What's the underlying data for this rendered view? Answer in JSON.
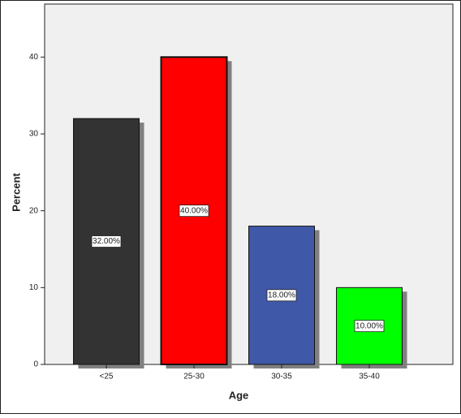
{
  "chart_data": {
    "type": "bar",
    "x_label": "Age",
    "y_label": "Percent",
    "categories": [
      "<25",
      "25-30",
      "30-35",
      "35-40"
    ],
    "values": [
      32,
      40,
      18,
      10
    ],
    "value_labels": [
      "32.00%",
      "40.00%",
      "18.00%",
      "10.00%"
    ],
    "colors": [
      "#333333",
      "#ff0000",
      "#3f58a8",
      "#00ff00"
    ],
    "ylim": [
      0,
      46.9
    ],
    "yticks": [
      0,
      10,
      20,
      30,
      40
    ],
    "grid": false
  }
}
